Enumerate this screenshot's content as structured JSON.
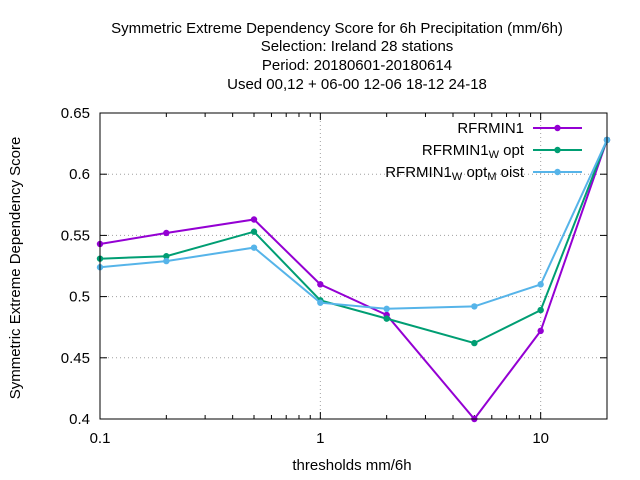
{
  "chart_data": {
    "type": "line",
    "title_lines": [
      "Symmetric Extreme Dependency Score  for 6h Precipitation (mm/6h)",
      "Selection: Ireland     28 stations",
      "Period: 20180601-20180614",
      "Used  00,12  + 06-00 12-06 18-12 24-18"
    ],
    "xlabel": "thresholds mm/6h",
    "ylabel": "Symmetric Extreme Dependency Score",
    "x_scale": "log",
    "xlim": [
      0.1,
      20
    ],
    "ylim": [
      0.4,
      0.65
    ],
    "x_ticks": [
      {
        "value": 0.1,
        "label": "0.1"
      },
      {
        "value": 1,
        "label": "1"
      },
      {
        "value": 10,
        "label": "10"
      }
    ],
    "y_ticks": [
      {
        "value": 0.4,
        "label": "0.4"
      },
      {
        "value": 0.45,
        "label": "0.45"
      },
      {
        "value": 0.5,
        "label": "0.5"
      },
      {
        "value": 0.55,
        "label": "0.55"
      },
      {
        "value": 0.6,
        "label": "0.6"
      },
      {
        "value": 0.65,
        "label": "0.65"
      }
    ],
    "grid": true,
    "legend_position": "top-right",
    "x": [
      0.1,
      0.2,
      0.5,
      1,
      2,
      5,
      10,
      20
    ],
    "series": [
      {
        "name": "RFRMIN1",
        "name_parts": [
          [
            "RFRMIN1",
            false
          ]
        ],
        "color": "#9400d3",
        "values": [
          0.543,
          0.552,
          0.563,
          0.51,
          0.485,
          0.4,
          0.472,
          0.628
        ]
      },
      {
        "name": "RFRMIN1_W opt",
        "name_parts": [
          [
            "RFRMIN1",
            false
          ],
          [
            "W",
            true
          ],
          [
            " opt",
            false
          ]
        ],
        "color": "#009e73",
        "values": [
          0.531,
          0.533,
          0.553,
          0.497,
          0.482,
          0.462,
          0.489,
          0.628
        ]
      },
      {
        "name": "RFRMIN1_W opt_M oist",
        "name_parts": [
          [
            "RFRMIN1",
            false
          ],
          [
            "W",
            true
          ],
          [
            " opt",
            false
          ],
          [
            "M",
            true
          ],
          [
            " oist",
            false
          ]
        ],
        "color": "#56b4e9",
        "values": [
          0.524,
          0.529,
          0.54,
          0.495,
          0.49,
          0.492,
          0.51,
          0.628
        ]
      }
    ]
  }
}
